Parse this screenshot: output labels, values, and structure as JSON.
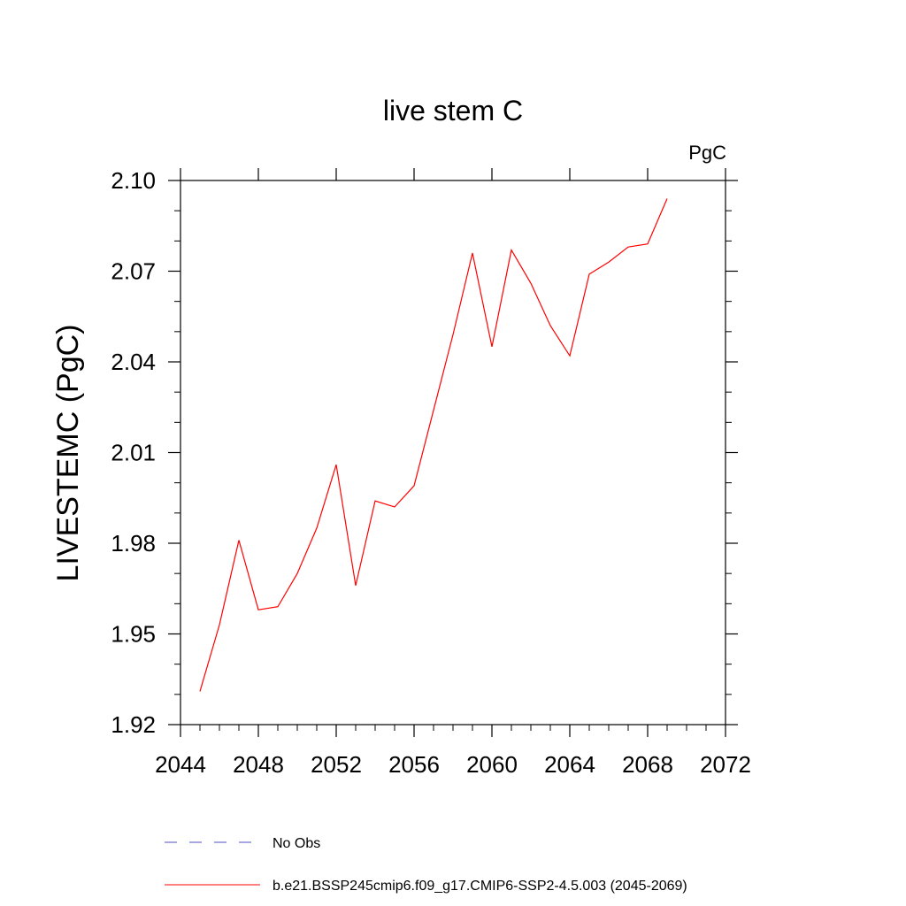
{
  "chart_data": {
    "type": "line",
    "title": "live stem C",
    "units": "PgC",
    "ylabel": "LIVESTEMC  (PgC)",
    "xlabel": "",
    "xlim": [
      2044,
      2072
    ],
    "ylim": [
      1.92,
      2.1
    ],
    "x_ticks": [
      "2044",
      "2048",
      "2052",
      "2056",
      "2060",
      "2064",
      "2068",
      "2072"
    ],
    "y_ticks": [
      "1.92",
      "1.95",
      "1.98",
      "2.01",
      "2.04",
      "2.07",
      "2.10"
    ],
    "grid": false,
    "legend_position": "bottom",
    "series": [
      {
        "name": "b.e21.BSSP245cmip6.f09_g17.CMIP6-SSP2-4.5.003 (2045-2069)",
        "color": "#ff0000",
        "style": "solid",
        "x": [
          2045,
          2046,
          2047,
          2048,
          2049,
          2050,
          2051,
          2052,
          2053,
          2054,
          2055,
          2056,
          2057,
          2058,
          2059,
          2060,
          2061,
          2062,
          2063,
          2064,
          2065,
          2066,
          2067,
          2068,
          2069
        ],
        "y": [
          1.931,
          1.953,
          1.981,
          1.958,
          1.959,
          1.97,
          1.985,
          2.006,
          1.966,
          1.994,
          1.992,
          1.999,
          2.024,
          2.049,
          2.076,
          2.045,
          2.077,
          2.066,
          2.052,
          2.042,
          2.069,
          2.073,
          2.078,
          2.079,
          2.094
        ]
      }
    ],
    "legend": [
      {
        "label": "No Obs",
        "color": "#5050c8",
        "style": "dashed"
      },
      {
        "label": "b.e21.BSSP245cmip6.f09_g17.CMIP6-SSP2-4.5.003 (2045-2069)",
        "color": "#ff0000",
        "style": "solid"
      }
    ]
  }
}
